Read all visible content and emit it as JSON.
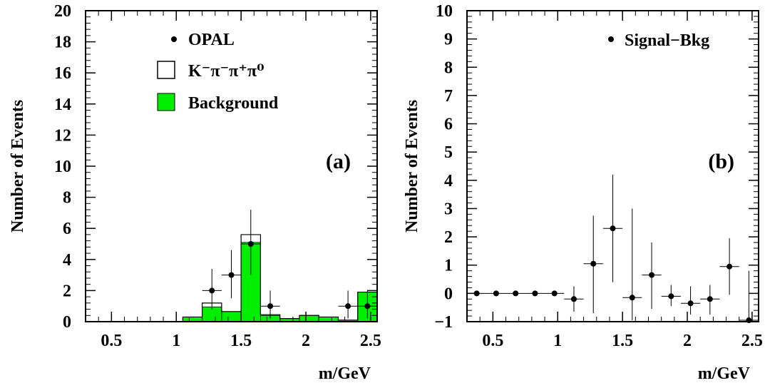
{
  "colors": {
    "background_fill": "#00ee00",
    "signal_outline": "#000000",
    "points": "#000000"
  },
  "chart_data": [
    {
      "id": "a",
      "type": "histogram",
      "panel_label": "(a)",
      "xlabel": "m/GeV",
      "ylabel": "Number of Events",
      "xlim": [
        0.3,
        2.55
      ],
      "ylim": [
        0,
        20
      ],
      "xticks": [
        "0.5",
        "1",
        "1.5",
        "2",
        "2.5"
      ],
      "yticks": [
        "0",
        "2",
        "4",
        "6",
        "8",
        "10",
        "12",
        "14",
        "16",
        "18",
        "20"
      ],
      "legend": [
        {
          "symbol": "point",
          "label": "OPAL"
        },
        {
          "symbol": "open-box",
          "label": "K⁻π⁻π⁺π⁰"
        },
        {
          "symbol": "filled-box",
          "label": "Background"
        }
      ],
      "bin_edges": [
        1.05,
        1.2,
        1.35,
        1.5,
        1.65,
        1.8,
        1.95,
        2.1,
        2.25,
        2.4,
        2.55
      ],
      "series": [
        {
          "name": "Background",
          "values": [
            0.3,
            0.95,
            0.65,
            5.1,
            0.4,
            0.2,
            0.4,
            0.3,
            0.1,
            1.9
          ]
        },
        {
          "name": "K⁻π⁻π⁺π⁰",
          "values": [
            0.3,
            1.2,
            0.65,
            5.6,
            0.45,
            0.2,
            0.4,
            0.3,
            0.1,
            1.9
          ]
        },
        {
          "name": "OPAL",
          "points": [
            {
              "x": 1.275,
              "y": 2,
              "ylo": 0.8,
              "yhi": 3.4
            },
            {
              "x": 1.425,
              "y": 3,
              "ylo": 1.5,
              "yhi": 4.6
            },
            {
              "x": 1.575,
              "y": 5,
              "ylo": 3.0,
              "yhi": 7.2
            },
            {
              "x": 1.725,
              "y": 1,
              "ylo": 0.2,
              "yhi": 2.0
            },
            {
              "x": 2.325,
              "y": 1,
              "ylo": 0.2,
              "yhi": 2.0
            },
            {
              "x": 2.475,
              "y": 1,
              "ylo": 0.2,
              "yhi": 2.0
            }
          ]
        }
      ]
    },
    {
      "id": "b",
      "type": "scatter",
      "panel_label": "(b)",
      "xlabel": "m/GeV",
      "ylabel": "Number of Events",
      "xlim": [
        0.3,
        2.55
      ],
      "ylim": [
        -1,
        10
      ],
      "xticks": [
        "0.5",
        "1",
        "1.5",
        "2",
        "2.5"
      ],
      "yticks": [
        "−1",
        "0",
        "1",
        "2",
        "3",
        "4",
        "5",
        "6",
        "7",
        "8",
        "9",
        "10"
      ],
      "legend": [
        {
          "symbol": "point",
          "label": "Signal−Bkg"
        }
      ],
      "series": [
        {
          "name": "Signal−Bkg",
          "points": [
            {
              "x": 0.375,
              "y": 0,
              "ylo": 0,
              "yhi": 0
            },
            {
              "x": 0.525,
              "y": 0,
              "ylo": 0,
              "yhi": 0
            },
            {
              "x": 0.675,
              "y": 0,
              "ylo": 0,
              "yhi": 0
            },
            {
              "x": 0.825,
              "y": 0,
              "ylo": 0,
              "yhi": 0
            },
            {
              "x": 0.975,
              "y": 0,
              "ylo": 0,
              "yhi": 0
            },
            {
              "x": 1.125,
              "y": -0.2,
              "ylo": -0.65,
              "yhi": 0.25
            },
            {
              "x": 1.275,
              "y": 1.05,
              "ylo": -0.7,
              "yhi": 2.75
            },
            {
              "x": 1.425,
              "y": 2.3,
              "ylo": 0.4,
              "yhi": 4.2
            },
            {
              "x": 1.575,
              "y": -0.15,
              "ylo": -0.95,
              "yhi": 3.0
            },
            {
              "x": 1.725,
              "y": 0.65,
              "ylo": -0.55,
              "yhi": 1.8
            },
            {
              "x": 1.875,
              "y": -0.1,
              "ylo": -0.45,
              "yhi": 0.3
            },
            {
              "x": 2.025,
              "y": -0.35,
              "ylo": -0.75,
              "yhi": 0.25
            },
            {
              "x": 2.175,
              "y": -0.2,
              "ylo": -0.75,
              "yhi": 0.3
            },
            {
              "x": 2.325,
              "y": 0.95,
              "ylo": -0.05,
              "yhi": 1.95
            },
            {
              "x": 2.475,
              "y": -0.95,
              "ylo": -0.95,
              "yhi": 0.8
            }
          ]
        }
      ]
    }
  ]
}
